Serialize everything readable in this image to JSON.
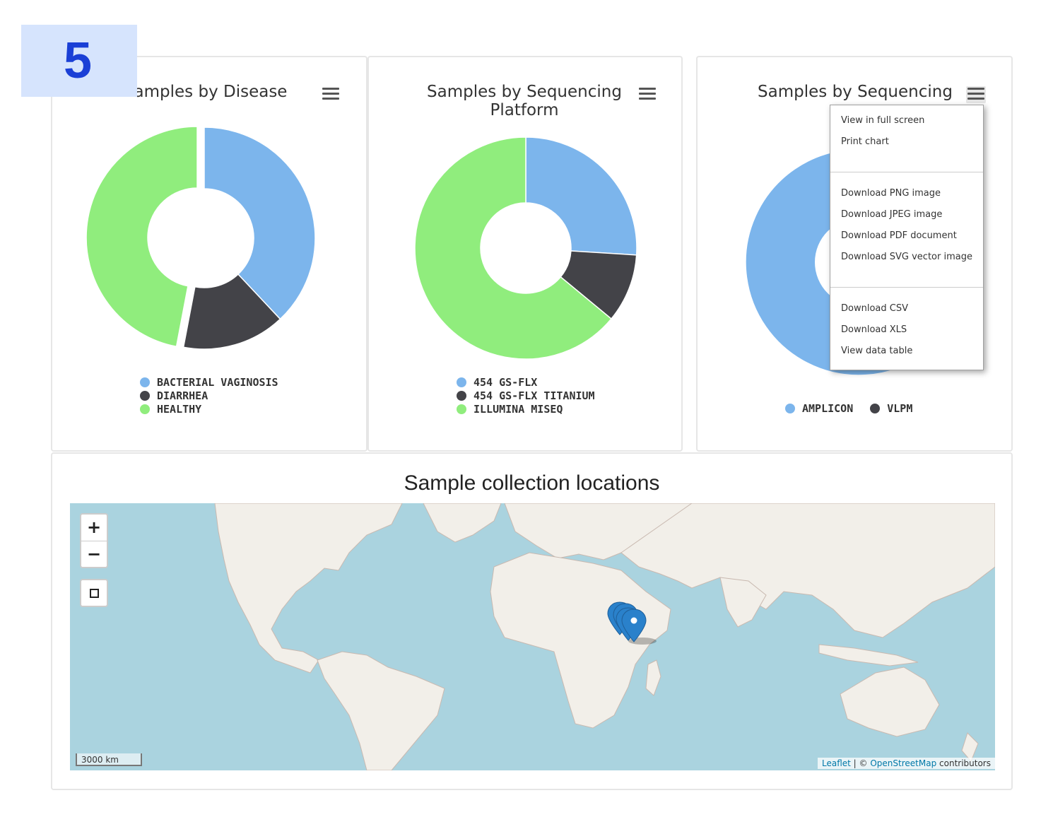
{
  "step_badge": "5",
  "charts": [
    {
      "title": "Samples by Disease",
      "visible_title": "amples by Disease",
      "legend": [
        {
          "label": "BACTERIAL VAGINOSIS",
          "color": "#7cb5ec"
        },
        {
          "label": "DIARRHEA",
          "color": "#434348"
        },
        {
          "label": "HEALTHY",
          "color": "#90ed7d"
        }
      ]
    },
    {
      "title_line1": "Samples by Sequencing",
      "title_line2": "Platform",
      "legend": [
        {
          "label": "454 GS-FLX",
          "color": "#7cb5ec"
        },
        {
          "label": "454 GS-FLX TITANIUM",
          "color": "#434348"
        },
        {
          "label": "ILLUMINA MISEQ",
          "color": "#90ed7d"
        }
      ]
    },
    {
      "title": "Samples by Sequencing",
      "legend": [
        {
          "label": "AMPLICON",
          "color": "#7cb5ec"
        },
        {
          "label": "VLPM",
          "color": "#434348"
        }
      ]
    }
  ],
  "chart_data": [
    {
      "type": "pie",
      "title": "Samples by Disease",
      "categories": [
        "BACTERIAL VAGINOSIS",
        "DIARRHEA",
        "HEALTHY"
      ],
      "values": [
        38,
        15,
        47
      ],
      "colors": [
        "#7cb5ec",
        "#434348",
        "#90ed7d"
      ],
      "selected": "HEALTHY"
    },
    {
      "type": "pie",
      "title": "Samples by Sequencing Platform",
      "categories": [
        "454 GS-FLX",
        "454 GS-FLX TITANIUM",
        "ILLUMINA MISEQ"
      ],
      "values": [
        26,
        10,
        64
      ],
      "colors": [
        "#7cb5ec",
        "#434348",
        "#90ed7d"
      ]
    },
    {
      "type": "pie",
      "title": "Samples by Sequencing",
      "categories": [
        "AMPLICON",
        "VLPM"
      ],
      "values": [
        98,
        2
      ],
      "colors": [
        "#7cb5ec",
        "#434348"
      ]
    }
  ],
  "context_menu": {
    "group1": [
      "View in full screen",
      "Print chart"
    ],
    "group2": [
      "Download PNG image",
      "Download JPEG image",
      "Download PDF document",
      "Download SVG vector image"
    ],
    "group3": [
      "Download CSV",
      "Download XLS",
      "View data table"
    ]
  },
  "map": {
    "title": "Sample collection locations",
    "zoom_in": "+",
    "zoom_out": "−",
    "scale": "3000 km",
    "attribution_leaflet": "Leaflet",
    "attribution_sep": " | © ",
    "attribution_osm": "OpenStreetMap",
    "attribution_suffix": " contributors",
    "water_color": "#aad3df",
    "land_color": "#f2efe9",
    "marker_color": "#2a81cb"
  }
}
